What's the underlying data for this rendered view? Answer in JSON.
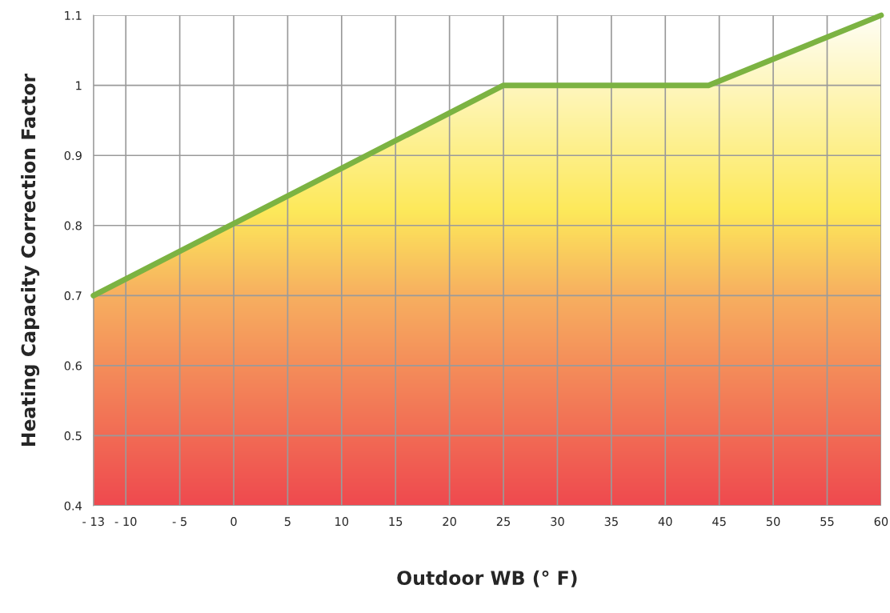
{
  "chart_data": {
    "type": "area",
    "xlabel": "Outdoor WB (° F)",
    "ylabel": "Heating Capacity Correction Factor",
    "x": [
      -13,
      25,
      44,
      60
    ],
    "series": [
      {
        "color": "#7cb342",
        "values": [
          0.7,
          1.0,
          1.0,
          1.1
        ]
      }
    ],
    "xlim": [
      -13,
      60
    ],
    "ylim": [
      0.4,
      1.1
    ],
    "xticks": [
      {
        "value": -13,
        "label": "- 13"
      },
      {
        "value": -10,
        "label": "- 10"
      },
      {
        "value": -5,
        "label": "- 5"
      },
      0,
      5,
      10,
      15,
      20,
      25,
      30,
      35,
      40,
      45,
      50,
      55,
      60
    ],
    "yticks": [
      0.4,
      0.5,
      0.6,
      0.7,
      0.8,
      0.9,
      1,
      1.1
    ],
    "grid": true,
    "marker": "none",
    "line_style": "solid"
  }
}
